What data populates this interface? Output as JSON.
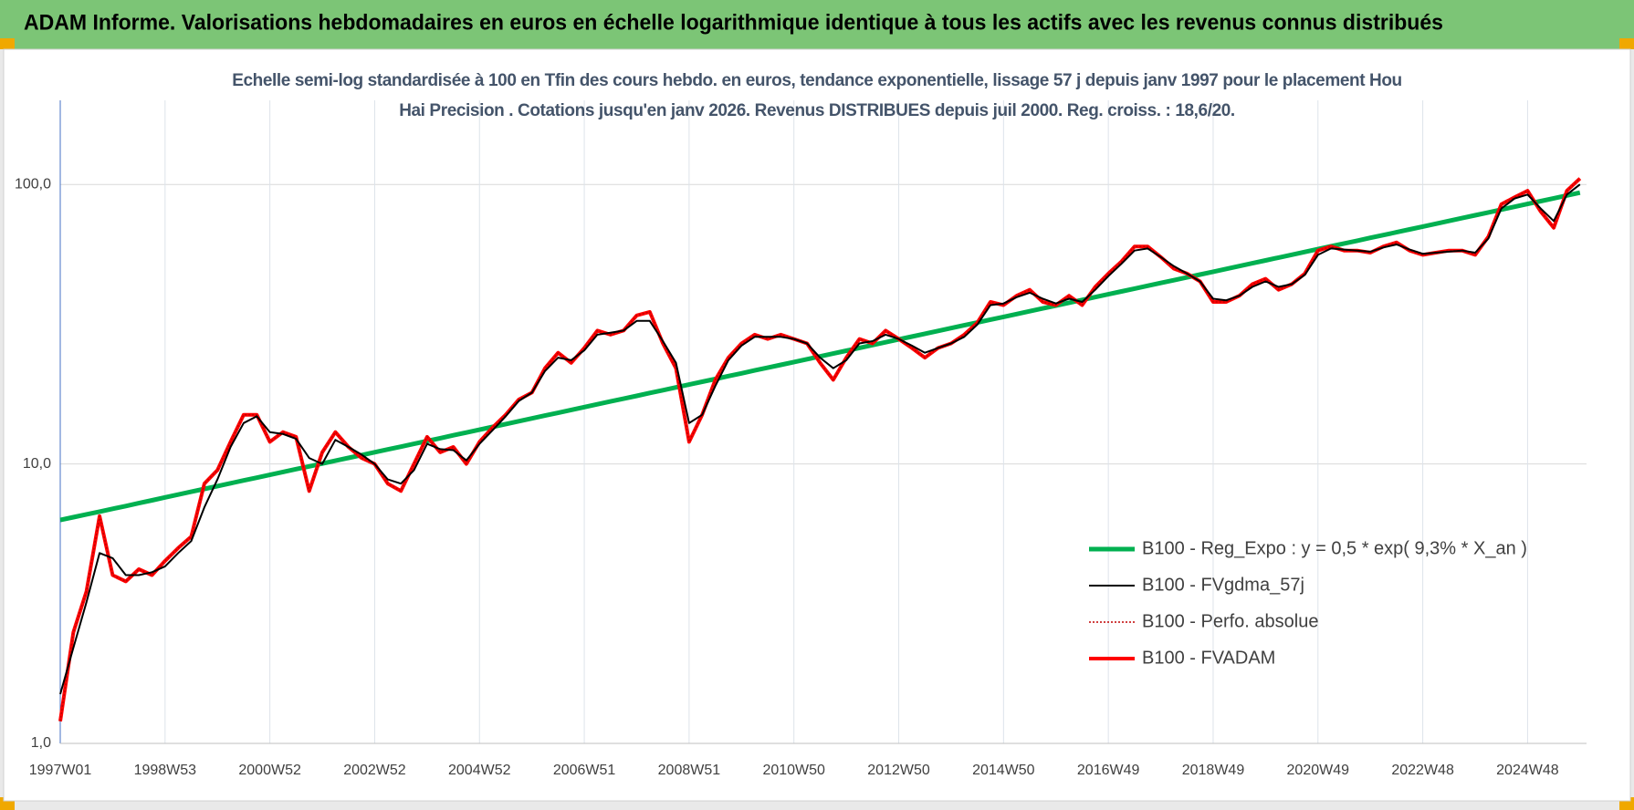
{
  "header": {
    "title": "ADAM Informe. Valorisations hebdomadaires en euros en échelle logarithmique identique à tous les actifs avec les revenus connus distribués"
  },
  "chart_data": {
    "type": "line",
    "title": "Echelle semi-log standardisée à 100 en Tfin des cours hebdo. en euros, tendance exponentielle, lissage 57 j depuis janv 1997 pour le placement Hou Hai Precision . Cotations jusqu'en janv 2026. Revenus DISTRIBUES depuis juil 2000. Reg. croiss. : 18,6/20.",
    "categories": [
      "1997W01",
      null,
      null,
      null,
      null,
      null,
      null,
      null,
      "1998W53",
      null,
      null,
      null,
      null,
      null,
      null,
      null,
      "2000W52",
      null,
      null,
      null,
      null,
      null,
      null,
      null,
      "2002W52",
      null,
      null,
      null,
      null,
      null,
      null,
      null,
      "2004W52",
      null,
      null,
      null,
      null,
      null,
      null,
      null,
      "2006W51",
      null,
      null,
      null,
      null,
      null,
      null,
      null,
      "2008W51",
      null,
      null,
      null,
      null,
      null,
      null,
      null,
      "2010W50",
      null,
      null,
      null,
      null,
      null,
      null,
      null,
      "2012W50",
      null,
      null,
      null,
      null,
      null,
      null,
      null,
      "2014W50",
      null,
      null,
      null,
      null,
      null,
      null,
      null,
      "2016W49",
      null,
      null,
      null,
      null,
      null,
      null,
      null,
      "2018W49",
      null,
      null,
      null,
      null,
      null,
      null,
      null,
      "2020W49",
      null,
      null,
      null,
      null,
      null,
      null,
      null,
      "2022W48",
      null,
      null,
      null,
      null,
      null,
      null,
      null,
      "2024W48",
      null,
      null,
      null,
      null
    ],
    "series": [
      {
        "name": "B100 - Reg_Expo : y = 0,5 * exp( 9,3% *  X_an )",
        "color": "#00b050",
        "line_style": "solid",
        "values": [
          6.3,
          6.45,
          6.6,
          6.75,
          6.91,
          7.07,
          7.24,
          7.41,
          7.59,
          7.77,
          7.95,
          8.14,
          8.33,
          8.53,
          8.73,
          8.93,
          9.14,
          9.36,
          9.58,
          9.8,
          10.03,
          10.27,
          10.51,
          10.76,
          11.01,
          11.27,
          11.53,
          11.8,
          12.08,
          12.36,
          12.66,
          12.95,
          13.26,
          13.57,
          13.89,
          14.22,
          14.55,
          14.89,
          15.24,
          15.6,
          15.97,
          16.35,
          16.73,
          17.12,
          17.52,
          17.94,
          18.36,
          18.79,
          19.23,
          19.68,
          20.14,
          20.62,
          21.1,
          21.6,
          22.1,
          22.62,
          23.16,
          23.7,
          24.26,
          24.83,
          25.42,
          26.01,
          26.63,
          27.25,
          27.9,
          28.55,
          29.22,
          29.91,
          30.62,
          31.34,
          32.07,
          32.83,
          33.6,
          34.39,
          35.2,
          36.02,
          36.87,
          37.74,
          38.62,
          39.53,
          40.47,
          41.42,
          42.39,
          43.39,
          44.41,
          45.45,
          46.52,
          47.61,
          48.74,
          49.88,
          51.05,
          52.25,
          53.49,
          54.74,
          56.03,
          57.35,
          58.7,
          60.08,
          61.49,
          62.93,
          64.42,
          65.93,
          67.48,
          69.07,
          70.7,
          72.36,
          74.06,
          75.8,
          77.59,
          79.41,
          81.28,
          83.19,
          85.15,
          87.15,
          89.2,
          91.3,
          93.45
        ]
      },
      {
        "name": "B100 - FVgdma_57j",
        "color": "#000000",
        "line_style": "solid",
        "values": [
          1.5,
          2.2,
          3.2,
          4.8,
          4.6,
          4.0,
          4.0,
          4.1,
          4.3,
          4.8,
          5.3,
          7.0,
          8.8,
          11.5,
          14.0,
          14.8,
          13.0,
          12.8,
          12.3,
          10.5,
          10.0,
          12.2,
          11.5,
          10.8,
          10.0,
          8.8,
          8.5,
          9.5,
          11.8,
          11.3,
          11.2,
          10.3,
          11.8,
          13.2,
          14.8,
          16.8,
          18.0,
          21.5,
          24.0,
          23.5,
          25.5,
          29.0,
          29.5,
          30.0,
          32.5,
          32.5,
          27.5,
          23.0,
          14.0,
          15.0,
          19.0,
          23.5,
          26.5,
          28.5,
          28.5,
          28.5,
          28.0,
          27.0,
          24.0,
          22.0,
          23.5,
          27.0,
          27.5,
          29.0,
          28.0,
          26.5,
          25.0,
          26.0,
          27.0,
          28.5,
          31.5,
          37.0,
          37.5,
          39.5,
          41.0,
          39.0,
          37.5,
          39.0,
          38.0,
          42.0,
          47.0,
          52.0,
          58.0,
          59.0,
          55.0,
          51.0,
          48.0,
          45.0,
          39.0,
          38.5,
          40.0,
          43.0,
          45.0,
          43.0,
          44.0,
          47.5,
          56.0,
          59.0,
          58.5,
          58.0,
          57.5,
          59.5,
          61.0,
          58.5,
          56.5,
          57.0,
          57.5,
          58.0,
          57.0,
          64.0,
          82.0,
          89.0,
          92.0,
          82.0,
          74.0,
          92.0,
          100.0
        ]
      },
      {
        "name": "B100 - Perfo. absolue",
        "color": "#c00000",
        "line_style": "dotted",
        "values": [
          1.2,
          2.5,
          3.5,
          6.5,
          4.0,
          3.8,
          4.2,
          4.0,
          4.5,
          5.0,
          5.5,
          8.5,
          9.5,
          12,
          15,
          15,
          12,
          13,
          12.5,
          8,
          11,
          13,
          11.5,
          10.5,
          10,
          8.5,
          8,
          10,
          12.5,
          11,
          11.5,
          10,
          12,
          13.5,
          15,
          17,
          18,
          22,
          25,
          23,
          26,
          30,
          29,
          30,
          34,
          35,
          27,
          22,
          12,
          15,
          20,
          24,
          27,
          29,
          28,
          29,
          28,
          27,
          23,
          20,
          24,
          28,
          27,
          30,
          28,
          26,
          24,
          26,
          27,
          29,
          32,
          38,
          37,
          40,
          42,
          38,
          37,
          40,
          37,
          43,
          48,
          53,
          60,
          60,
          55,
          50,
          48,
          45,
          38,
          38,
          40,
          44,
          46,
          42,
          44,
          48,
          58,
          60,
          58,
          58,
          57,
          60,
          62,
          58,
          56,
          57,
          58,
          58,
          56,
          65,
          85,
          90,
          95,
          80,
          70,
          95,
          105
        ]
      },
      {
        "name": "B100 - FVADAM",
        "color": "#ff0000",
        "line_style": "solid",
        "values": [
          1.2,
          2.5,
          3.5,
          6.5,
          4.0,
          3.8,
          4.2,
          4.0,
          4.5,
          5.0,
          5.5,
          8.5,
          9.5,
          12,
          15,
          15,
          12,
          13,
          12.5,
          8,
          11,
          13,
          11.5,
          10.5,
          10,
          8.5,
          8,
          10,
          12.5,
          11,
          11.5,
          10,
          12,
          13.5,
          15,
          17,
          18,
          22,
          25,
          23,
          26,
          30,
          29,
          30,
          34,
          35,
          27,
          22,
          12,
          15,
          20,
          24,
          27,
          29,
          28,
          29,
          28,
          27,
          23,
          20,
          24,
          28,
          27,
          30,
          28,
          26,
          24,
          26,
          27,
          29,
          32,
          38,
          37,
          40,
          42,
          38,
          37,
          40,
          37,
          43,
          48,
          53,
          60,
          60,
          55,
          50,
          48,
          45,
          38,
          38,
          40,
          44,
          46,
          42,
          44,
          48,
          58,
          60,
          58,
          58,
          57,
          60,
          62,
          58,
          56,
          57,
          58,
          58,
          56,
          65,
          85,
          90,
          95,
          80,
          70,
          95,
          105
        ]
      }
    ],
    "ylim": [
      1,
      200
    ],
    "log_scale": true,
    "yticks": [
      {
        "value": 1,
        "label": "1,0"
      },
      {
        "value": 10,
        "label": "10,0"
      },
      {
        "value": 100,
        "label": "100,0"
      }
    ],
    "grid": true,
    "legend": "lower right"
  }
}
